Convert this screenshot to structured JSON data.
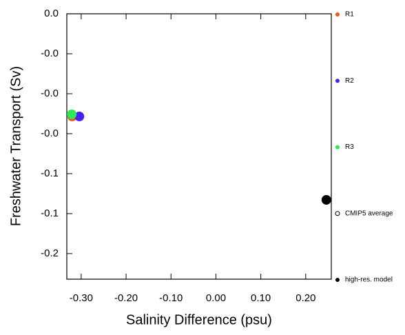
{
  "chart_data": {
    "type": "scatter",
    "x_label": "Salinity Difference (psu)",
    "y_label": "Freshwater Transport (Sv)",
    "xlim": [
      -0.332,
      0.257
    ],
    "ylim": [
      -0.166,
      0
    ],
    "xticks": [
      {
        "value": -0.3,
        "label": "-0.30"
      },
      {
        "value": -0.2,
        "label": "-0.20"
      },
      {
        "value": -0.1,
        "label": "-0.10"
      },
      {
        "value": 0,
        "label": "0.00"
      },
      {
        "value": 0.1,
        "label": "0.10"
      },
      {
        "value": 0.2,
        "label": "0.20"
      }
    ],
    "yticks": [
      {
        "value": 0,
        "label": "0.0"
      },
      {
        "value": -0.025,
        "label": "-0.0"
      },
      {
        "value": -0.05,
        "label": "-0.0"
      },
      {
        "value": -0.075,
        "label": "-0.0"
      },
      {
        "value": -0.1,
        "label": "-0.1"
      },
      {
        "value": -0.125,
        "label": "-0.1"
      },
      {
        "value": -0.15,
        "label": "-0.2"
      }
    ],
    "series": [
      {
        "name": "R1",
        "color": "#f2561d",
        "marker": "filled",
        "x": [
          -0.32
        ],
        "values": [
          -0.0642
        ]
      },
      {
        "name": "R2",
        "color": "#4b1ff0",
        "marker": "filled",
        "x": [
          -0.304
        ],
        "values": [
          -0.0642
        ]
      },
      {
        "name": "R3",
        "color": "#2ee858",
        "marker": "filled",
        "x": [
          -0.321
        ],
        "values": [
          -0.0629
        ]
      },
      {
        "name": "CMIP5 average",
        "color": "#000000",
        "marker": "open",
        "x": [],
        "values": []
      },
      {
        "name": "high-res. model",
        "color": "#000000",
        "marker": "filled",
        "x": [
          0.246
        ],
        "values": [
          -0.1164
        ]
      }
    ]
  }
}
